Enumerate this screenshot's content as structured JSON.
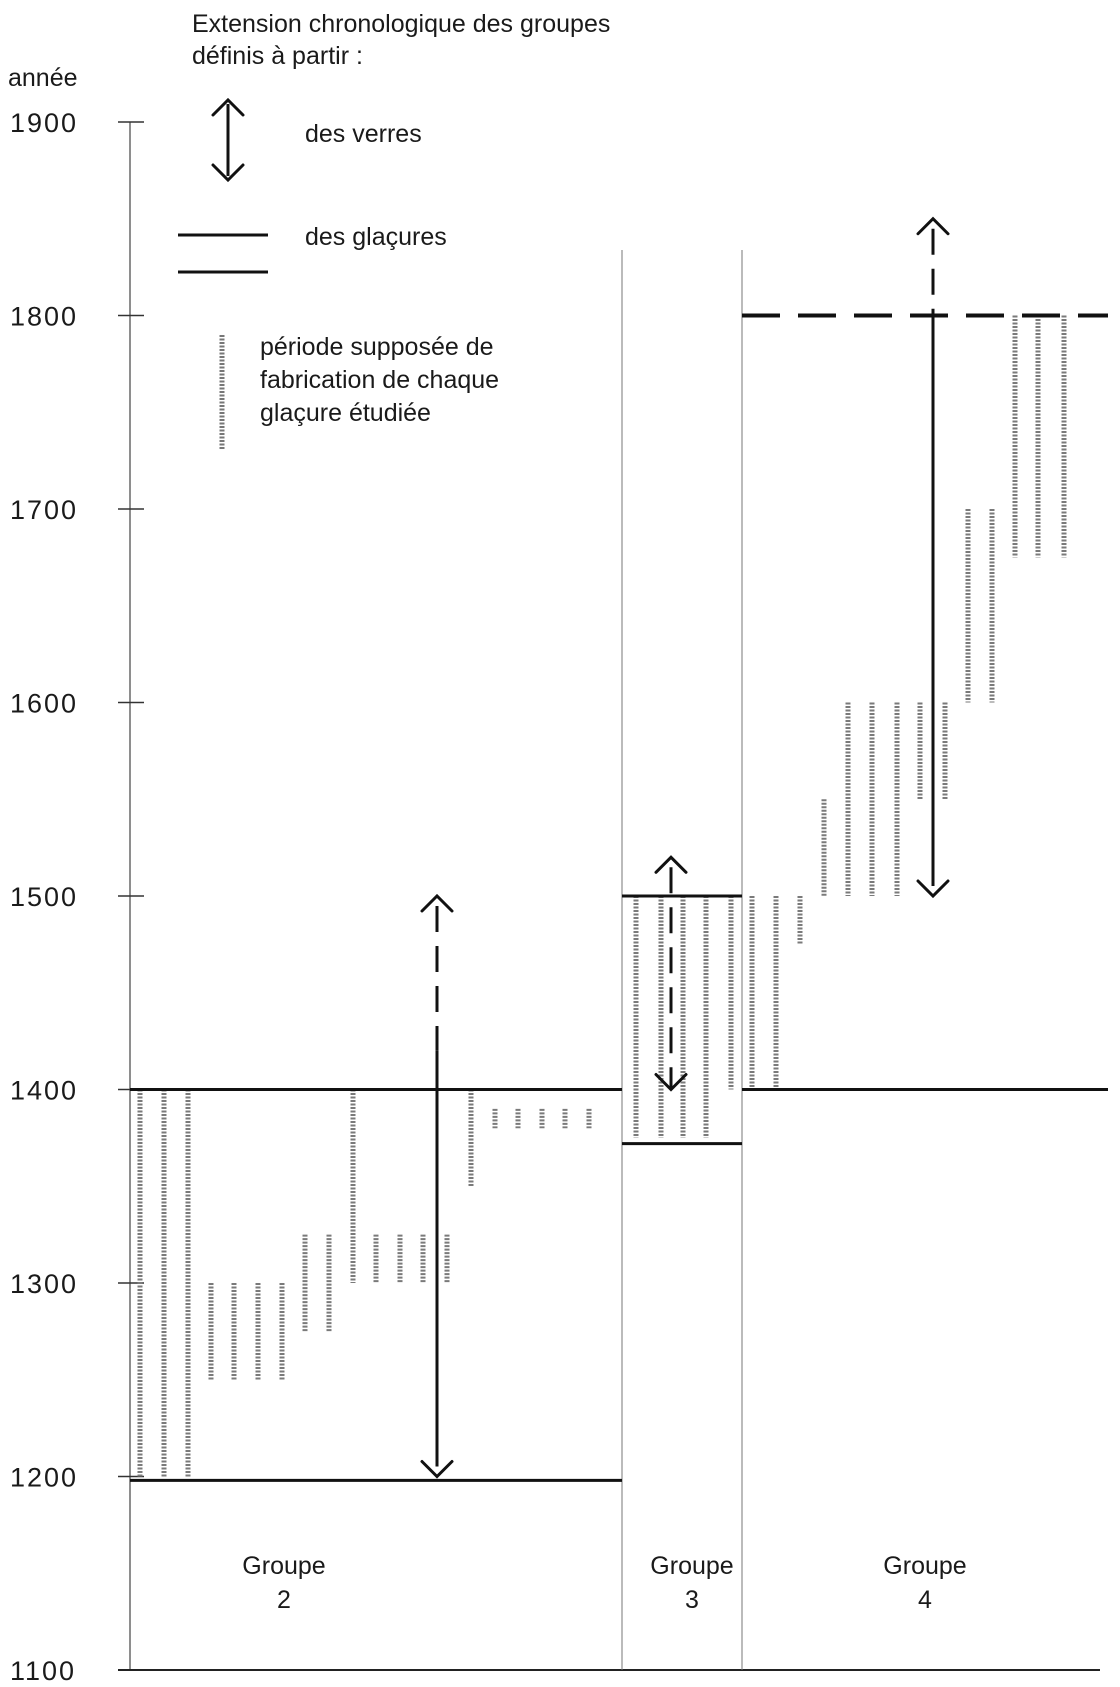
{
  "chart_data": {
    "type": "range",
    "ylabel": "année",
    "ylim": [
      1100,
      1900
    ],
    "yticks": [
      "1100",
      "1200",
      "1300",
      "1400",
      "1500",
      "1600",
      "1700",
      "1800",
      "1900"
    ],
    "legend": {
      "title_line1": "Extension chronologique des groupes",
      "title_line2": "définis à partir :",
      "verres": "des verres",
      "glacures": "des glaçures",
      "periode_line1": "période supposée de",
      "periode_line2": "fabrication de chaque",
      "periode_line3": "glaçure étudiée"
    },
    "groups": [
      {
        "line1": "Groupe",
        "line2": "2",
        "glaze_range": [
          1198,
          1400
        ],
        "glass_range": [
          1200,
          1500
        ],
        "glass_dashed_from": 1420,
        "periods": [
          [
            1200,
            1400
          ],
          [
            1200,
            1400
          ],
          [
            1200,
            1400
          ],
          [
            1250,
            1300
          ],
          [
            1250,
            1300
          ],
          [
            1250,
            1300
          ],
          [
            1250,
            1300
          ],
          [
            1275,
            1325
          ],
          [
            1275,
            1325
          ],
          [
            1300,
            1400
          ],
          [
            1300,
            1325
          ],
          [
            1300,
            1325
          ],
          [
            1300,
            1325
          ],
          [
            1300,
            1325
          ],
          [
            1350,
            1400
          ],
          [
            1380,
            1390
          ],
          [
            1380,
            1390
          ],
          [
            1380,
            1390
          ],
          [
            1380,
            1390
          ],
          [
            1380,
            1390
          ]
        ]
      },
      {
        "line1": "Groupe",
        "line2": "3",
        "glaze_range": [
          1372,
          1500
        ],
        "glass_range": [
          1400,
          1520
        ],
        "glass_dashed_from": 1400,
        "periods": [
          [
            1375,
            1500
          ],
          [
            1375,
            1500
          ],
          [
            1375,
            1500
          ],
          [
            1375,
            1500
          ],
          [
            1400,
            1500
          ],
          [
            1450,
            1500
          ],
          [
            1475,
            1500
          ]
        ]
      },
      {
        "line1": "Groupe",
        "line2": "4",
        "glaze_range": [
          1400,
          1800
        ],
        "glaze_dashed_top": true,
        "glass_range": [
          1500,
          1850
        ],
        "glass_dashed_from": 1800,
        "periods": [
          [
            1400,
            1500
          ],
          [
            1400,
            1500
          ],
          [
            1475,
            1500
          ],
          [
            1500,
            1550
          ],
          [
            1500,
            1600
          ],
          [
            1500,
            1600
          ],
          [
            1500,
            1600
          ],
          [
            1550,
            1600
          ],
          [
            1550,
            1600
          ],
          [
            1600,
            1700
          ],
          [
            1600,
            1700
          ],
          [
            1675,
            1800
          ],
          [
            1675,
            1800
          ],
          [
            1675,
            1800
          ]
        ]
      }
    ]
  }
}
